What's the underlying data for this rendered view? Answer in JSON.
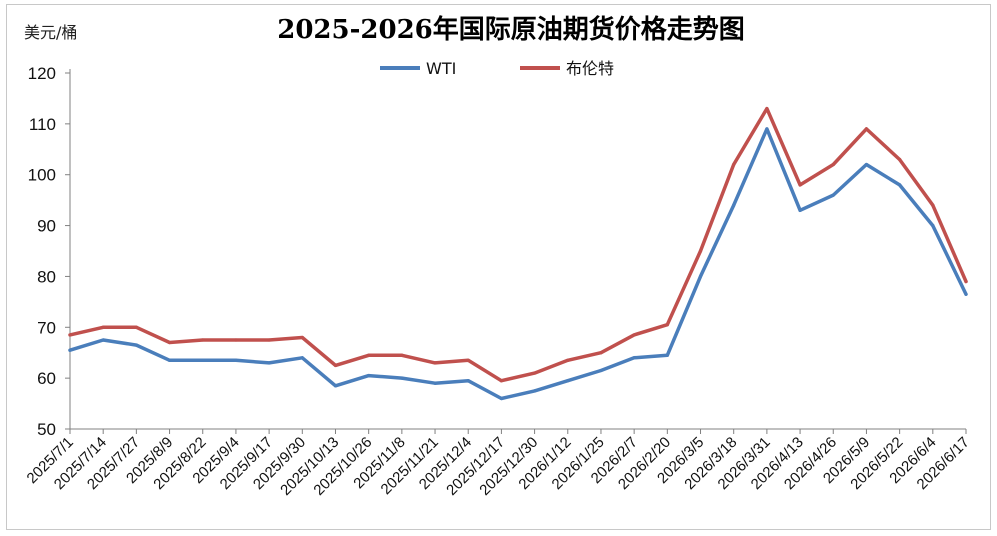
{
  "chart_data": {
    "type": "line",
    "title": "2025-2026年国际原油期货价格走势图",
    "ylabel": "美元/桶",
    "ylim": [
      50,
      120
    ],
    "yticks": [
      50,
      60,
      70,
      80,
      90,
      100,
      110,
      120
    ],
    "legend_position": "top-center",
    "grid": false,
    "x_tick_labels": [
      "2025/7/1",
      "2025/7/14",
      "2025/7/27",
      "2025/8/9",
      "2025/8/22",
      "2025/9/4",
      "2025/9/17",
      "2025/9/30",
      "2025/10/13",
      "2025/10/26",
      "2025/11/8",
      "2025/11/21",
      "2025/12/4",
      "2025/12/17",
      "2025/12/30",
      "2026/1/12",
      "2026/1/25",
      "2026/2/7",
      "2026/2/20",
      "2026/3/5",
      "2026/3/18",
      "2026/3/31",
      "2026/4/13",
      "2026/4/26",
      "2026/5/9",
      "2026/5/22",
      "2026/6/4",
      "2026/6/17"
    ],
    "x": [
      "2025/7/1",
      "2025/7/14",
      "2025/7/27",
      "2025/8/9",
      "2025/8/22",
      "2025/9/4",
      "2025/9/17",
      "2025/9/30",
      "2025/10/13",
      "2025/10/26",
      "2025/11/8",
      "2025/11/21",
      "2025/12/4",
      "2025/12/17",
      "2025/12/30",
      "2026/1/12",
      "2026/1/25",
      "2026/2/7",
      "2026/2/20",
      "2026/3/5",
      "2026/3/18",
      "2026/3/31",
      "2026/4/13",
      "2026/4/26",
      "2026/5/9",
      "2026/5/22",
      "2026/6/4",
      "2026/6/17"
    ],
    "series": [
      {
        "name": "WTI",
        "color": "#4a7ebb",
        "values": [
          65.5,
          67.5,
          66.5,
          63.5,
          63.5,
          63.5,
          63.0,
          64.0,
          58.5,
          60.5,
          60.0,
          59.0,
          59.5,
          56.0,
          57.5,
          59.5,
          61.5,
          64.0,
          64.5,
          80.0,
          94.0,
          109.0,
          93.0,
          96.0,
          102.0,
          98.0,
          90.0,
          76.5
        ]
      },
      {
        "name": "布伦特",
        "color": "#c0504d",
        "values": [
          68.5,
          70.0,
          70.0,
          67.0,
          67.5,
          67.5,
          67.5,
          68.0,
          62.5,
          64.5,
          64.5,
          63.0,
          63.5,
          59.5,
          61.0,
          63.5,
          65.0,
          68.5,
          70.5,
          85.0,
          102.0,
          113.0,
          98.0,
          102.0,
          109.0,
          103.0,
          94.0,
          79.0
        ]
      }
    ]
  }
}
